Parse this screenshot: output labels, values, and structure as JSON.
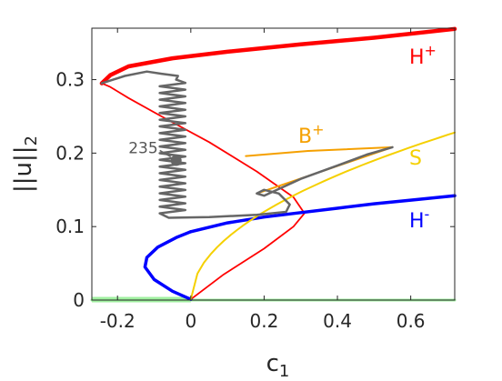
{
  "chart_data": {
    "type": "line",
    "title": "",
    "xlabel": "c",
    "xlabel_sub": "1",
    "ylabel": "||u||",
    "ylabel_sub": "2",
    "xlim": [
      -0.27,
      0.72
    ],
    "ylim": [
      0,
      0.37
    ],
    "xticks": [
      -0.2,
      0,
      0.2,
      0.4,
      0.6
    ],
    "xtick_labels": [
      "-0.2",
      "0",
      "0.2",
      "0.4",
      "0.6"
    ],
    "yticks": [
      0,
      0.1,
      0.2,
      0.3
    ],
    "ytick_labels": [
      "0",
      "0.1",
      "0.2",
      "0.3"
    ],
    "grid": false,
    "series": [
      {
        "label": "H",
        "sup": "+",
        "color": "#ff0000",
        "width_stable": 4.5,
        "width_unstable": 1.8
      },
      {
        "label": "B",
        "sup": "+",
        "color": "#f5a000",
        "width": 2
      },
      {
        "label": "S",
        "sup": "",
        "color": "#f5d000",
        "width": 2
      },
      {
        "label": "H",
        "sup": "-",
        "color": "#0000ff",
        "width": 3.5
      },
      {
        "color": "#a0f0a0",
        "width": 3
      },
      {
        "color": "#666666",
        "width": 2.5
      }
    ],
    "point_label": "235",
    "point": [
      -0.04,
      0.19
    ]
  }
}
